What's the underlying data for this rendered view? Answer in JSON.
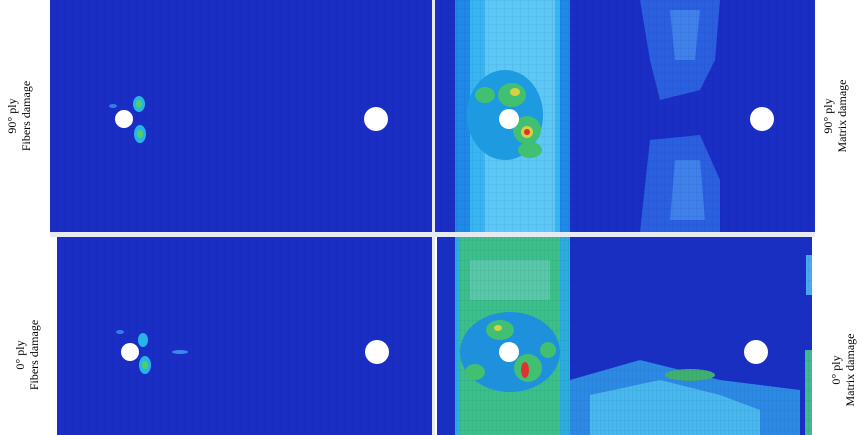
{
  "panels": [
    {
      "ply": "90° ply",
      "damage": "Fibers damage"
    },
    {
      "ply": "90° ply",
      "damage": "Matrix damage"
    },
    {
      "ply": "0° ply",
      "damage": "Fibers damage"
    },
    {
      "ply": "0° ply",
      "damage": "Matrix damage"
    }
  ]
}
